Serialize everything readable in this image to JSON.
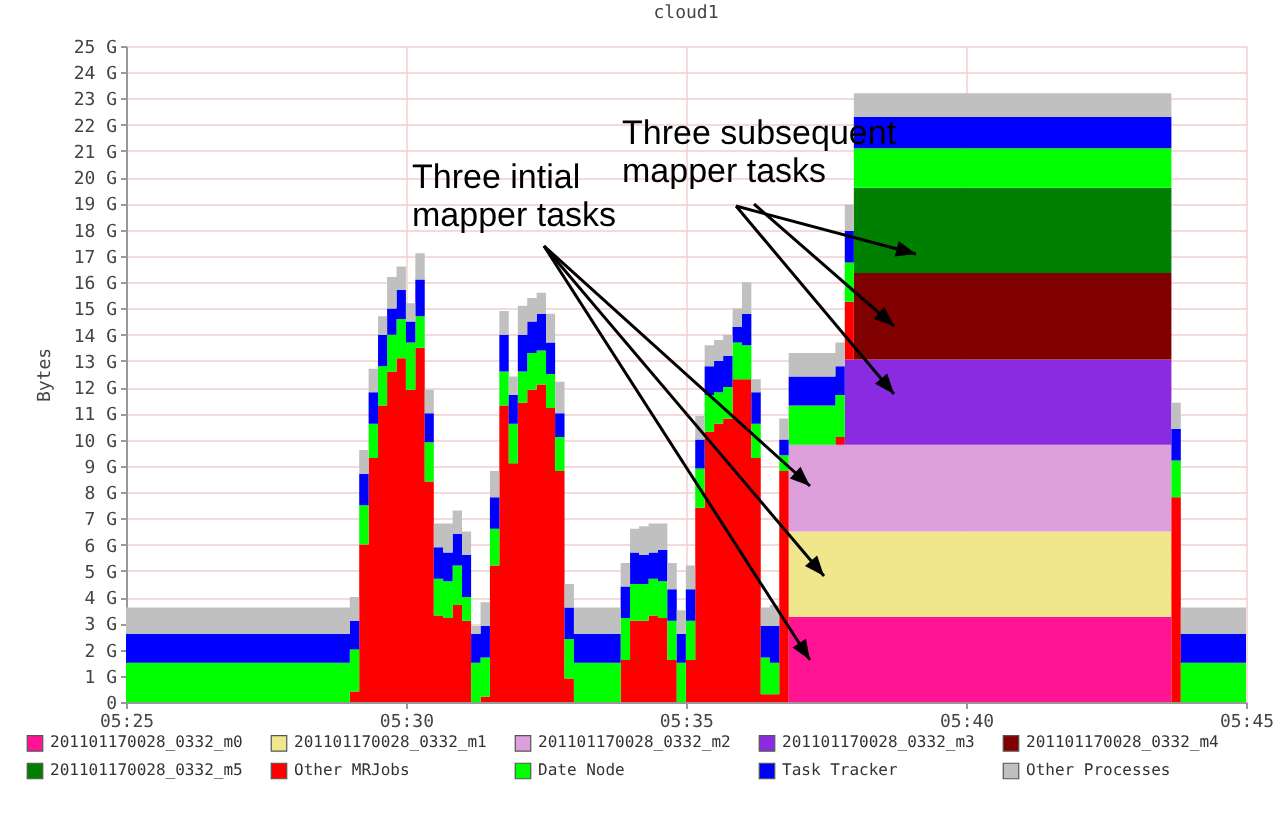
{
  "chart_data": {
    "type": "area",
    "title": "cloud1",
    "ylabel": "Bytes",
    "annotations": [
      "Three intial mapper tasks",
      "Three subsequent mapper tasks"
    ],
    "x": [
      5.4167,
      5.4833,
      5.4861,
      5.4889,
      5.4917,
      5.4944,
      5.4972,
      5.5,
      5.5028,
      5.5056,
      5.5083,
      5.5111,
      5.5139,
      5.5167,
      5.5194,
      5.5222,
      5.525,
      5.5278,
      5.5306,
      5.5333,
      5.5361,
      5.5389,
      5.5417,
      5.5444,
      5.5472,
      5.55,
      5.5639,
      5.5667,
      5.5694,
      5.5722,
      5.575,
      5.5778,
      5.5806,
      5.5833,
      5.5861,
      5.5889,
      5.5917,
      5.5944,
      5.5972,
      5.6,
      5.6028,
      5.6056,
      5.6083,
      5.6111,
      5.6139,
      5.6278,
      5.6306,
      5.6333,
      5.7278,
      5.7306,
      5.75
    ],
    "stacked": true,
    "series": [
      {
        "name": "201101170028_0332_m0",
        "color": "#ff1493",
        "values": [
          null,
          null,
          null,
          null,
          null,
          null,
          null,
          null,
          null,
          null,
          null,
          null,
          null,
          null,
          null,
          null,
          null,
          null,
          null,
          null,
          null,
          null,
          null,
          null,
          null,
          null,
          null,
          null,
          null,
          null,
          null,
          null,
          null,
          null,
          null,
          null,
          null,
          null,
          null,
          null,
          null,
          null,
          null,
          null,
          3.25,
          3.25,
          3.25,
          3.25,
          0,
          null,
          null
        ]
      },
      {
        "name": "201101170028_0332_m1",
        "color": "#f0e68c",
        "values": [
          null,
          null,
          null,
          null,
          null,
          null,
          null,
          null,
          null,
          null,
          null,
          null,
          null,
          null,
          null,
          null,
          null,
          null,
          null,
          null,
          null,
          null,
          null,
          null,
          null,
          null,
          null,
          null,
          null,
          null,
          null,
          null,
          null,
          null,
          null,
          null,
          null,
          null,
          null,
          null,
          null,
          null,
          null,
          null,
          3.25,
          3.25,
          3.25,
          3.25,
          0,
          null,
          null
        ]
      },
      {
        "name": "201101170028_0332_m2",
        "color": "#dda0dd",
        "values": [
          null,
          null,
          null,
          null,
          null,
          null,
          null,
          null,
          null,
          null,
          null,
          null,
          null,
          null,
          null,
          null,
          null,
          null,
          null,
          null,
          null,
          null,
          null,
          null,
          null,
          null,
          null,
          null,
          null,
          null,
          null,
          null,
          null,
          null,
          null,
          null,
          null,
          null,
          null,
          null,
          null,
          null,
          null,
          null,
          3.3,
          3.3,
          3.3,
          3.3,
          0,
          null,
          null
        ]
      },
      {
        "name": "201101170028_0332_m3",
        "color": "#8a2be2",
        "values": [
          null,
          null,
          null,
          null,
          null,
          null,
          null,
          null,
          null,
          null,
          null,
          null,
          null,
          null,
          null,
          null,
          null,
          null,
          null,
          null,
          null,
          null,
          null,
          null,
          null,
          null,
          null,
          null,
          null,
          null,
          null,
          null,
          null,
          null,
          null,
          null,
          null,
          null,
          null,
          null,
          null,
          null,
          null,
          null,
          null,
          null,
          3.25,
          3.25,
          0,
          null,
          null
        ]
      },
      {
        "name": "201101170028_0332_m4",
        "color": "#800000",
        "values": [
          null,
          null,
          null,
          null,
          null,
          null,
          null,
          null,
          null,
          null,
          null,
          null,
          null,
          null,
          null,
          null,
          null,
          null,
          null,
          null,
          null,
          null,
          null,
          null,
          null,
          null,
          null,
          null,
          null,
          null,
          null,
          null,
          null,
          null,
          null,
          null,
          null,
          null,
          null,
          null,
          null,
          null,
          null,
          null,
          null,
          null,
          null,
          3.3,
          0,
          null,
          null
        ]
      },
      {
        "name": "201101170028_0332_m5",
        "color": "#008000",
        "values": [
          null,
          null,
          null,
          null,
          null,
          null,
          null,
          null,
          null,
          null,
          null,
          null,
          null,
          null,
          null,
          null,
          null,
          null,
          null,
          null,
          null,
          null,
          null,
          null,
          null,
          null,
          null,
          null,
          null,
          null,
          null,
          null,
          null,
          null,
          null,
          null,
          null,
          null,
          null,
          null,
          null,
          null,
          null,
          null,
          null,
          null,
          null,
          3.25,
          0,
          null,
          null
        ]
      },
      {
        "name": "Other MRJobs",
        "color": "#ff0000",
        "values": [
          0,
          0.4,
          6.0,
          9.3,
          11.3,
          12.6,
          13.1,
          11.9,
          13.5,
          8.4,
          3.3,
          3.2,
          3.7,
          3.1,
          0,
          0.2,
          5.2,
          11.3,
          9.1,
          11.4,
          11.9,
          12.1,
          11.2,
          8.8,
          0.9,
          0,
          1.6,
          3.1,
          3.1,
          3.3,
          3.2,
          1.6,
          0,
          1.6,
          7.4,
          10.3,
          10.6,
          10.8,
          12.3,
          12.3,
          9.3,
          0.3,
          0.3,
          8.8,
          0,
          0.3,
          2.2,
          0,
          7.8,
          0,
          0
        ]
      },
      {
        "name": "Date Node",
        "color": "#00ff00",
        "values": [
          1.5,
          1.6,
          1.5,
          1.3,
          1.5,
          1.4,
          1.5,
          1.8,
          1.2,
          1.5,
          1.4,
          1.4,
          1.5,
          0.9,
          1.5,
          1.5,
          1.4,
          1.3,
          1.5,
          1.2,
          1.4,
          1.3,
          1.3,
          1.3,
          1.5,
          1.5,
          1.6,
          1.4,
          1.4,
          1.4,
          1.4,
          1.5,
          1.5,
          1.5,
          1.5,
          1.4,
          1.2,
          1.2,
          1.4,
          1.3,
          1.3,
          1.4,
          1.2,
          0.6,
          1.5,
          1.6,
          1.5,
          1.5,
          1.4,
          1.5,
          1.5
        ]
      },
      {
        "name": "Task Tracker",
        "color": "#0000ff",
        "values": [
          1.1,
          1.1,
          1.2,
          1.2,
          1.2,
          1.0,
          1.1,
          0.8,
          1.4,
          1.1,
          1.2,
          1.1,
          1.2,
          1.6,
          1.1,
          1.2,
          1.2,
          1.4,
          1.1,
          1.4,
          1.2,
          1.4,
          1.2,
          0.9,
          1.2,
          1.1,
          1.2,
          1.2,
          1.1,
          1.0,
          1.2,
          1.2,
          1.1,
          1.2,
          1.1,
          1.1,
          1.2,
          1.2,
          0.6,
          1.2,
          1.2,
          1.2,
          1.4,
          0.6,
          1.1,
          1.1,
          1.2,
          1.2,
          1.2,
          1.1,
          1.1
        ]
      },
      {
        "name": "Other Processes",
        "color": "#c0c0c0",
        "values": [
          1.0,
          0.9,
          0.9,
          0.9,
          0.7,
          1.2,
          0.9,
          0.7,
          1.0,
          0.9,
          0.9,
          1.1,
          0.9,
          0.9,
          0.3,
          0.9,
          1.0,
          0.9,
          0.7,
          1.1,
          0.9,
          0.8,
          1.1,
          1.2,
          0.9,
          1.0,
          0.9,
          0.9,
          1.1,
          1.1,
          1.0,
          1.0,
          0.9,
          0.9,
          0.9,
          0.8,
          0.8,
          0.8,
          0.7,
          1.2,
          0.5,
          0.7,
          0.8,
          0.8,
          0.9,
          0.9,
          1.0,
          0.9,
          1.0,
          1.0,
          1.0
        ]
      }
    ],
    "xlim": [
      5.4167,
      5.75
    ],
    "xticks": [
      {
        "value": 5.4167,
        "label": "05:25"
      },
      {
        "value": 5.5,
        "label": "05:30"
      },
      {
        "value": 5.5833,
        "label": "05:35"
      },
      {
        "value": 5.6667,
        "label": "05:40"
      },
      {
        "value": 5.75,
        "label": "05:45"
      }
    ],
    "ylim": [
      0,
      25
    ],
    "yticks": [
      0,
      {
        "value": 1,
        "label": "1 G"
      },
      {
        "value": 2,
        "label": "2 G"
      },
      {
        "value": 3,
        "label": "3 G"
      },
      {
        "value": 4,
        "label": "4 G"
      },
      {
        "value": 5,
        "label": "5 G"
      },
      {
        "value": 6,
        "label": "6 G"
      },
      {
        "value": 7,
        "label": "7 G"
      },
      {
        "value": 8,
        "label": "8 G"
      },
      {
        "value": 9,
        "label": "9 G"
      },
      {
        "value": 10,
        "label": "10 G"
      },
      {
        "value": 11,
        "label": "11 G"
      },
      {
        "value": 12,
        "label": "12 G"
      },
      {
        "value": 13,
        "label": "13 G"
      },
      {
        "value": 14,
        "label": "14 G"
      },
      {
        "value": 15,
        "label": "15 G"
      },
      {
        "value": 16,
        "label": "16 G"
      },
      {
        "value": 17,
        "label": "17 G"
      },
      {
        "value": 18,
        "label": "18 G"
      },
      {
        "value": 19,
        "label": "19 G"
      },
      {
        "value": 20,
        "label": "20 G"
      },
      {
        "value": 21,
        "label": "21 G"
      },
      {
        "value": 22,
        "label": "22 G"
      },
      {
        "value": 23,
        "label": "23 G"
      },
      {
        "value": 24,
        "label": "24 G"
      },
      {
        "value": 25,
        "label": "25 G"
      }
    ],
    "grid": true,
    "legend": "bottom"
  }
}
